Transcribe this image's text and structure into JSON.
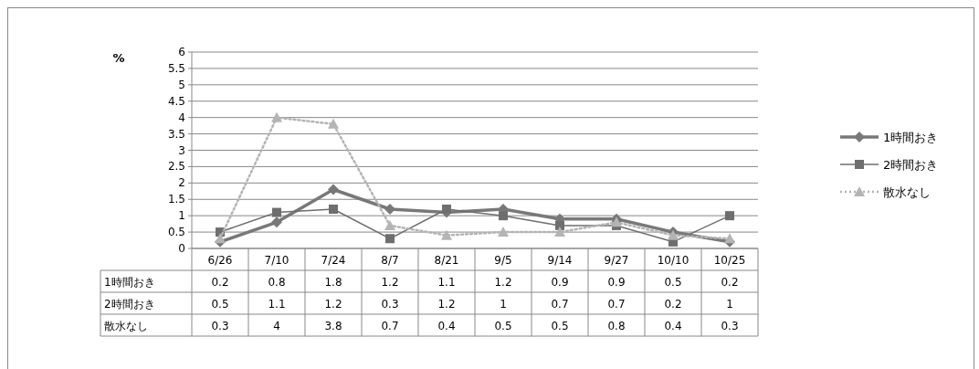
{
  "chart_data": {
    "type": "line",
    "ylabel": "%",
    "categories": [
      "6/26",
      "7/10",
      "7/24",
      "8/7",
      "8/21",
      "9/5",
      "9/14",
      "9/27",
      "10/10",
      "10/25"
    ],
    "series": [
      {
        "name": "1時間おき",
        "color": "#787878",
        "marker": "diamond",
        "line_style": "solid",
        "values": [
          0.2,
          0.8,
          1.8,
          1.2,
          1.1,
          1.2,
          0.9,
          0.9,
          0.5,
          0.2
        ]
      },
      {
        "name": "2時間おき",
        "color": "#6e6e6e",
        "marker": "square",
        "line_style": "solid",
        "values": [
          0.5,
          1.1,
          1.2,
          0.3,
          1.2,
          1,
          0.7,
          0.7,
          0.2,
          1
        ]
      },
      {
        "name": "散水なし",
        "color": "#b4b4b4",
        "marker": "triangle",
        "line_style": "dotted",
        "values": [
          0.3,
          4,
          3.8,
          0.7,
          0.4,
          0.5,
          0.5,
          0.8,
          0.4,
          0.3
        ]
      }
    ],
    "ylim": [
      0,
      6
    ],
    "yticks": [
      0,
      0.5,
      1,
      1.5,
      2,
      2.5,
      3,
      3.5,
      4,
      4.5,
      5,
      5.5,
      6
    ],
    "grid": "y",
    "legend": "right",
    "data_labels": true
  }
}
